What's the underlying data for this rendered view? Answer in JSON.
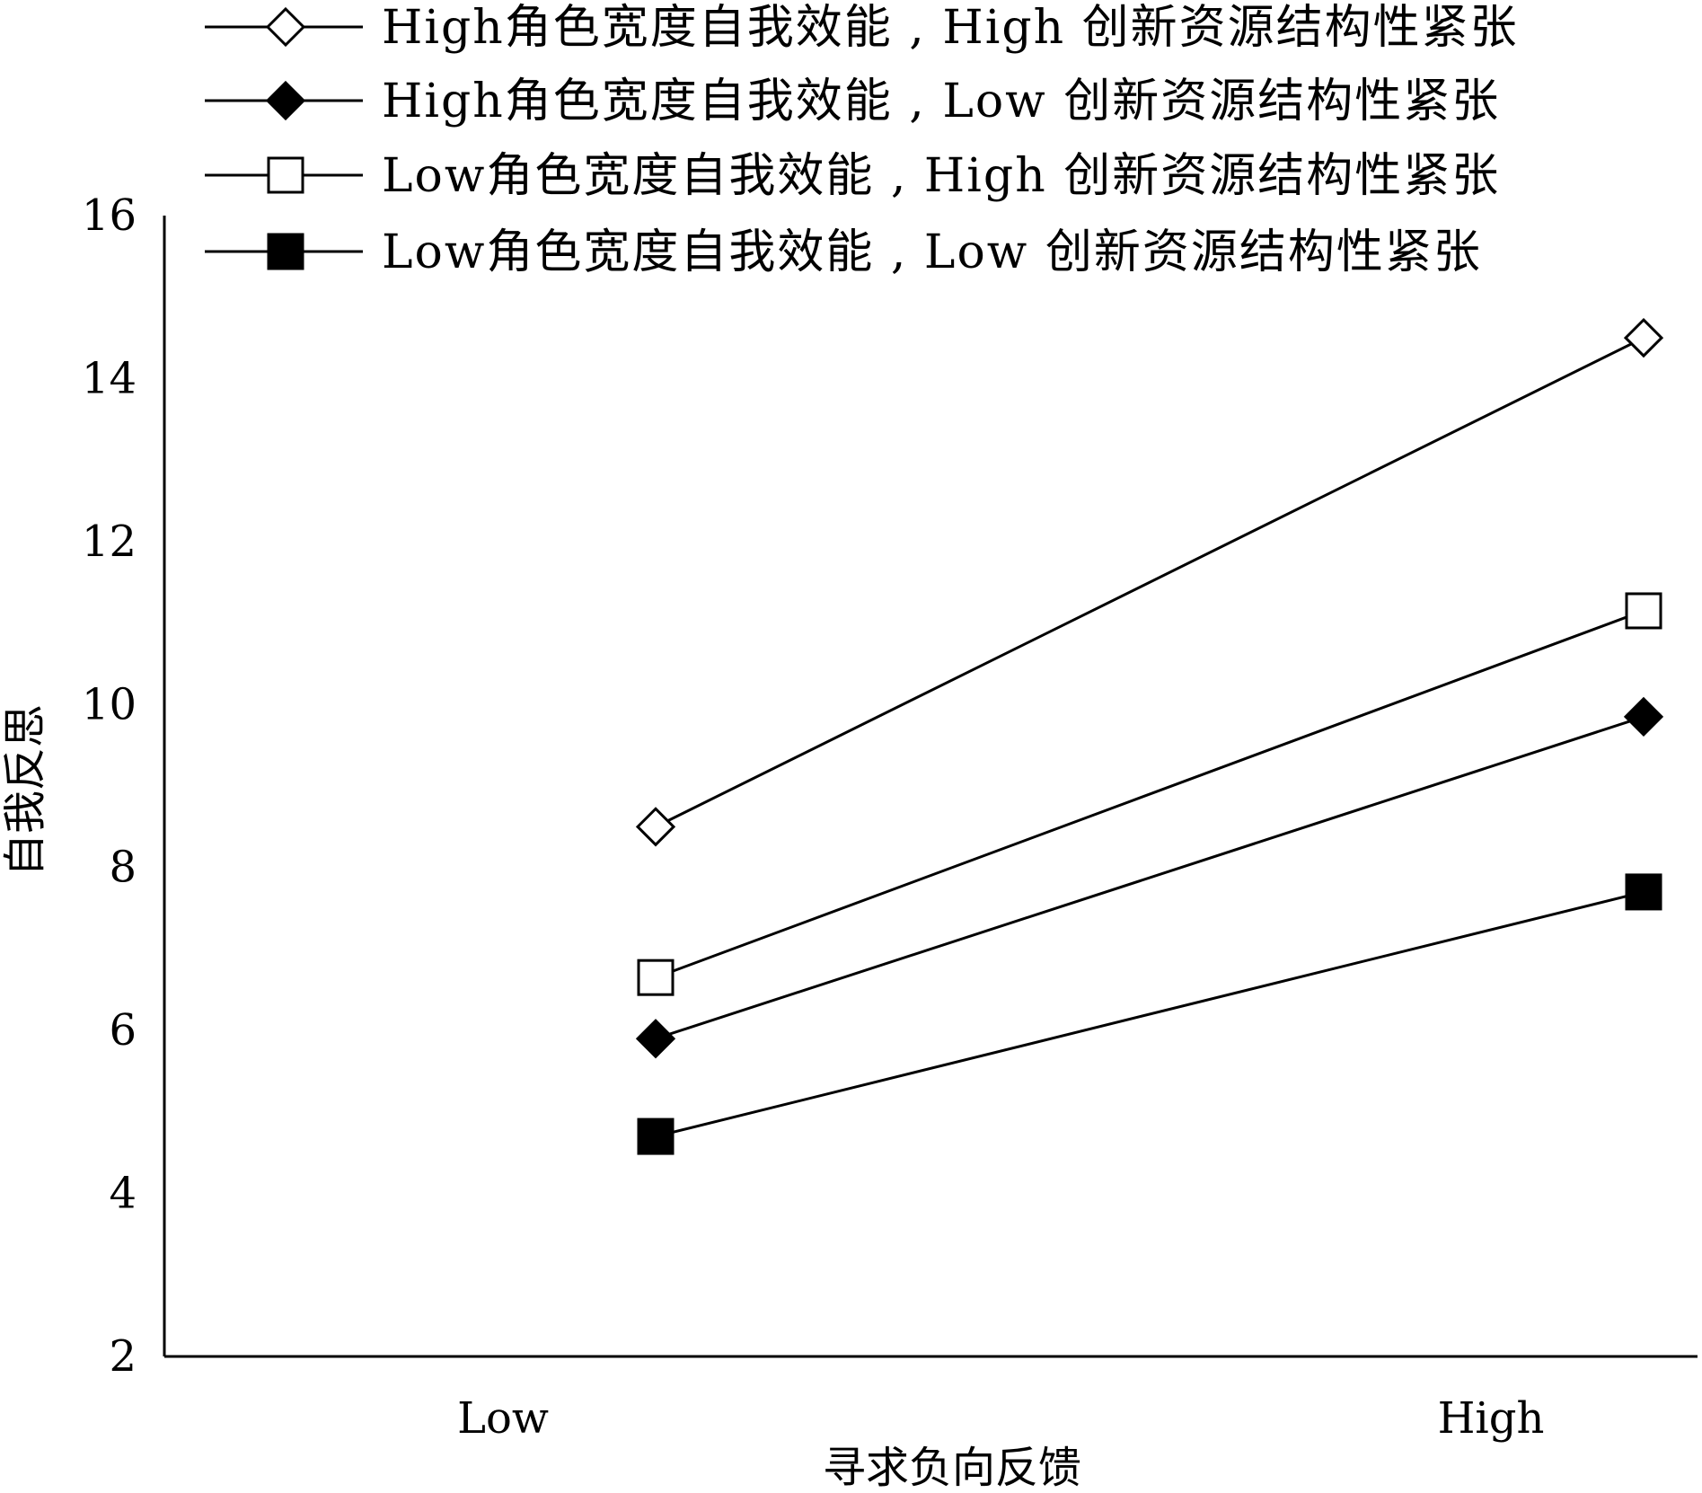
{
  "chart_data": {
    "type": "line",
    "title": "",
    "xlabel": "寻求负向反馈",
    "ylabel": "自我反思",
    "categories": [
      "Low",
      "High"
    ],
    "ylim": [
      2,
      16
    ],
    "yticks": [
      2,
      4,
      6,
      8,
      10,
      12,
      14,
      16
    ],
    "grid": false,
    "legend_position": "top",
    "series": [
      {
        "name": "High角色宽度自我效能 , High 创新资源结构性紧张",
        "marker": "diamond-open",
        "values": [
          8.5,
          14.5
        ]
      },
      {
        "name": "High角色宽度自我效能 , Low 创新资源结构性紧张",
        "marker": "diamond-filled",
        "values": [
          5.9,
          9.85
        ]
      },
      {
        "name": "Low角色宽度自我效能 , High 创新资源结构性紧张",
        "marker": "square-open",
        "values": [
          6.65,
          11.15
        ]
      },
      {
        "name": "Low角色宽度自我效能 , Low 创新资源结构性紧张",
        "marker": "square-filled",
        "values": [
          4.7,
          7.7
        ]
      }
    ]
  }
}
